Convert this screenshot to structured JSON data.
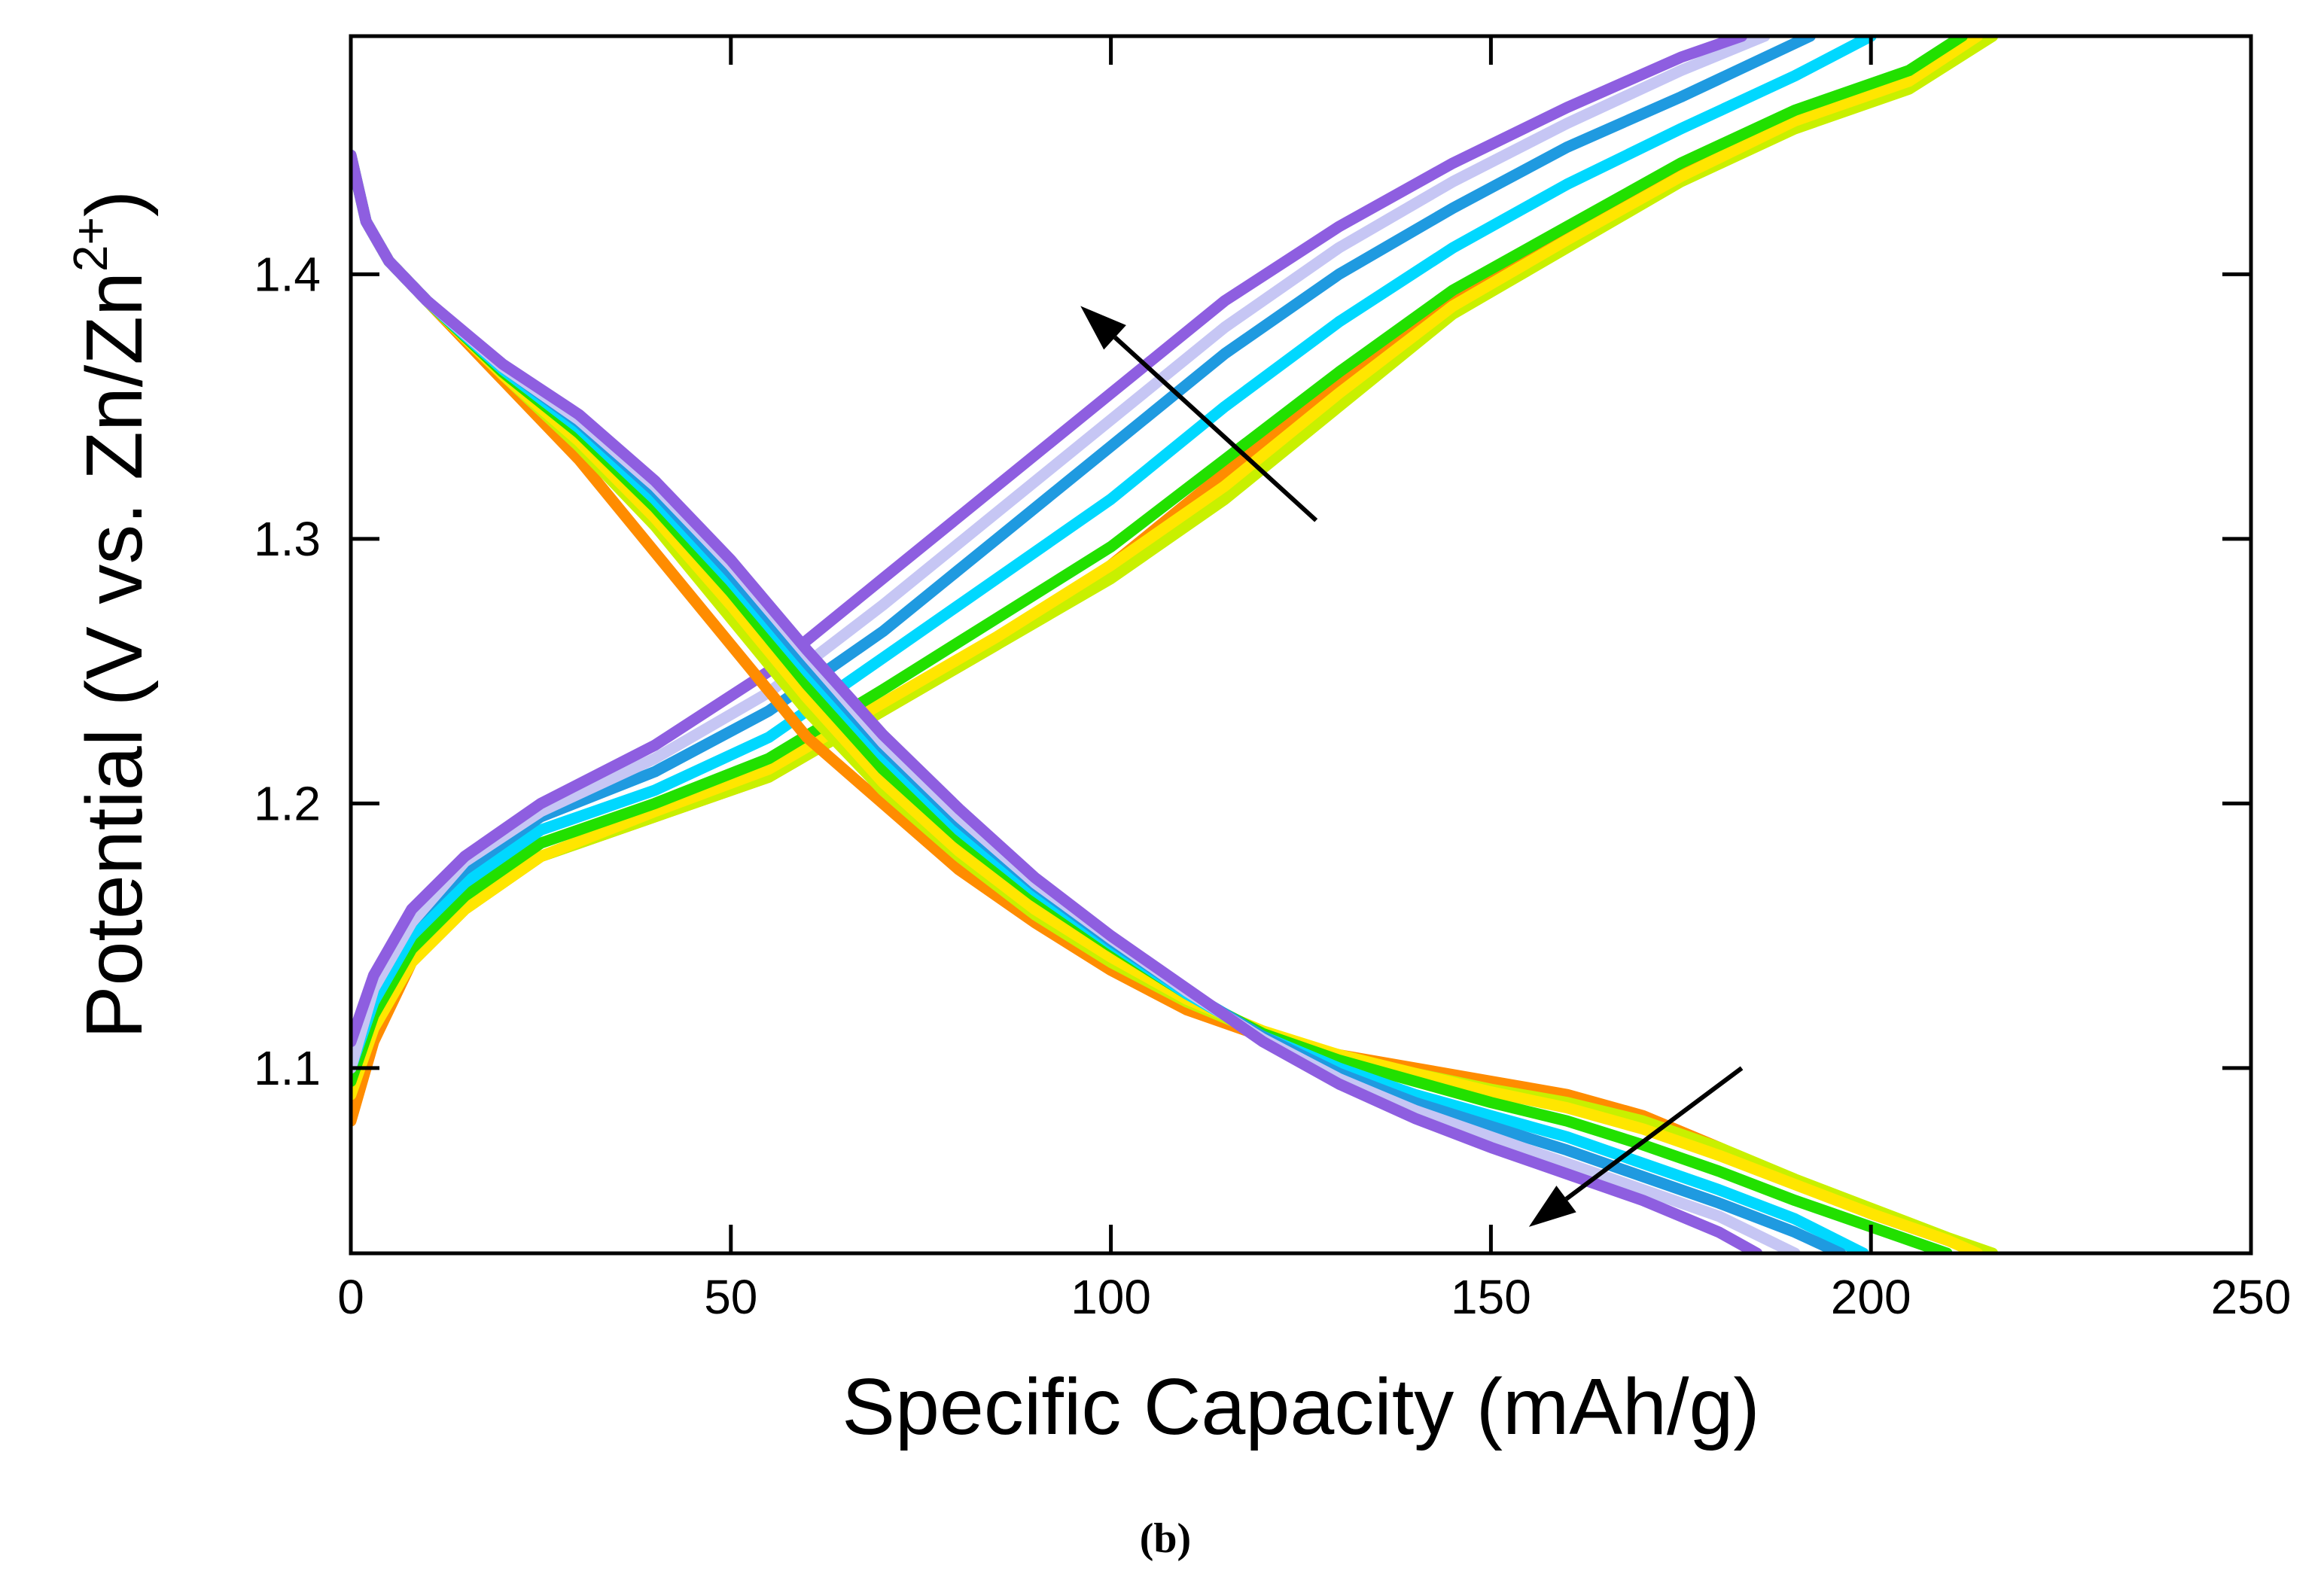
{
  "chart_data": {
    "type": "line",
    "title": "",
    "panel_label": "(b)",
    "xlabel": "Specific Capacity (mAh/g)",
    "ylabel": "Potential (V vs. Zn/Zn",
    "ylabel_superscript": "2+",
    "ylabel_suffix": ")",
    "xlim": [
      0,
      250
    ],
    "ylim": [
      1.03,
      1.49
    ],
    "x_ticks": [
      0,
      50,
      100,
      150,
      200,
      250
    ],
    "x_tick_labels": [
      "0",
      "50",
      "100",
      "150",
      "200",
      "250"
    ],
    "y_ticks": [
      1.1,
      1.2,
      1.3,
      1.4
    ],
    "y_tick_labels": [
      "1.1",
      "1.2",
      "1.3",
      "1.4"
    ],
    "grid": false,
    "legend": "none",
    "charge_series": [
      {
        "color": "#ff8c00",
        "x": [
          0,
          3,
          8,
          15,
          25,
          40,
          55,
          70,
          85,
          100,
          115,
          130,
          145,
          160,
          175,
          190,
          205,
          215
        ],
        "y": [
          1.08,
          1.11,
          1.14,
          1.16,
          1.18,
          1.195,
          1.21,
          1.235,
          1.26,
          1.29,
          1.325,
          1.36,
          1.39,
          1.415,
          1.44,
          1.46,
          1.475,
          1.49
        ]
      },
      {
        "color": "#c8f000",
        "x": [
          0,
          3,
          8,
          15,
          25,
          40,
          55,
          70,
          85,
          100,
          115,
          130,
          145,
          160,
          175,
          190,
          205,
          216
        ],
        "y": [
          1.09,
          1.115,
          1.14,
          1.16,
          1.18,
          1.195,
          1.21,
          1.235,
          1.26,
          1.285,
          1.315,
          1.35,
          1.385,
          1.41,
          1.435,
          1.455,
          1.47,
          1.49
        ]
      },
      {
        "color": "#ffe600",
        "x": [
          0,
          3,
          8,
          15,
          25,
          40,
          55,
          70,
          85,
          100,
          115,
          130,
          145,
          160,
          175,
          190,
          205,
          214
        ],
        "y": [
          1.09,
          1.115,
          1.14,
          1.16,
          1.18,
          1.197,
          1.213,
          1.238,
          1.263,
          1.29,
          1.32,
          1.355,
          1.388,
          1.413,
          1.437,
          1.458,
          1.473,
          1.49
        ]
      },
      {
        "color": "#22e000",
        "x": [
          0,
          3,
          8,
          15,
          25,
          40,
          55,
          70,
          85,
          100,
          115,
          130,
          145,
          160,
          175,
          190,
          205,
          212
        ],
        "y": [
          1.095,
          1.12,
          1.145,
          1.165,
          1.185,
          1.2,
          1.217,
          1.243,
          1.27,
          1.297,
          1.33,
          1.363,
          1.394,
          1.418,
          1.442,
          1.462,
          1.477,
          1.49
        ]
      },
      {
        "color": "#00d8ff",
        "x": [
          0,
          3,
          8,
          15,
          25,
          40,
          55,
          70,
          85,
          100,
          115,
          130,
          145,
          160,
          175,
          190,
          200
        ],
        "y": [
          1.1,
          1.125,
          1.15,
          1.17,
          1.19,
          1.205,
          1.225,
          1.255,
          1.285,
          1.315,
          1.35,
          1.382,
          1.41,
          1.434,
          1.455,
          1.475,
          1.49
        ]
      },
      {
        "color": "#1f9ae0",
        "x": [
          0,
          3,
          8,
          15,
          25,
          40,
          55,
          70,
          85,
          100,
          115,
          130,
          145,
          160,
          175,
          192
        ],
        "y": [
          1.1,
          1.13,
          1.155,
          1.175,
          1.195,
          1.212,
          1.235,
          1.265,
          1.3,
          1.335,
          1.37,
          1.4,
          1.425,
          1.448,
          1.467,
          1.49
        ]
      },
      {
        "color": "#c6c6f4",
        "x": [
          0,
          3,
          8,
          15,
          25,
          40,
          55,
          70,
          85,
          100,
          115,
          130,
          145,
          160,
          175,
          186
        ],
        "y": [
          1.1,
          1.13,
          1.155,
          1.178,
          1.197,
          1.217,
          1.242,
          1.275,
          1.31,
          1.345,
          1.38,
          1.41,
          1.435,
          1.457,
          1.477,
          1.49
        ]
      },
      {
        "color": "#8e5ee0",
        "x": [
          0,
          3,
          8,
          15,
          25,
          40,
          55,
          70,
          85,
          100,
          115,
          130,
          145,
          160,
          175,
          183
        ],
        "y": [
          1.11,
          1.135,
          1.16,
          1.18,
          1.2,
          1.222,
          1.25,
          1.285,
          1.32,
          1.355,
          1.39,
          1.418,
          1.442,
          1.463,
          1.482,
          1.49
        ]
      }
    ],
    "discharge_series": [
      {
        "color": "#ff8c00",
        "x": [
          0,
          2,
          5,
          10,
          20,
          30,
          40,
          50,
          60,
          70,
          80,
          90,
          100,
          110,
          120,
          130,
          140,
          150,
          160,
          170,
          180,
          190,
          200,
          210,
          215
        ],
        "y": [
          1.445,
          1.42,
          1.405,
          1.39,
          1.36,
          1.33,
          1.295,
          1.26,
          1.225,
          1.2,
          1.175,
          1.155,
          1.137,
          1.122,
          1.112,
          1.105,
          1.1,
          1.095,
          1.09,
          1.082,
          1.07,
          1.057,
          1.045,
          1.035,
          1.03
        ]
      },
      {
        "color": "#c8f000",
        "x": [
          0,
          2,
          5,
          10,
          20,
          30,
          40,
          50,
          60,
          70,
          80,
          90,
          100,
          110,
          120,
          130,
          140,
          150,
          160,
          170,
          180,
          190,
          200,
          210,
          216
        ],
        "y": [
          1.445,
          1.42,
          1.405,
          1.39,
          1.362,
          1.335,
          1.305,
          1.27,
          1.235,
          1.205,
          1.18,
          1.158,
          1.14,
          1.125,
          1.113,
          1.105,
          1.098,
          1.092,
          1.087,
          1.08,
          1.07,
          1.058,
          1.047,
          1.036,
          1.03
        ]
      },
      {
        "color": "#ffe600",
        "x": [
          0,
          2,
          5,
          10,
          20,
          30,
          40,
          50,
          60,
          70,
          80,
          90,
          100,
          110,
          120,
          130,
          140,
          150,
          160,
          170,
          180,
          190,
          200,
          210,
          214
        ],
        "y": [
          1.445,
          1.42,
          1.405,
          1.39,
          1.362,
          1.337,
          1.308,
          1.275,
          1.24,
          1.208,
          1.182,
          1.16,
          1.142,
          1.126,
          1.114,
          1.105,
          1.098,
          1.091,
          1.085,
          1.077,
          1.067,
          1.056,
          1.045,
          1.035,
          1.03
        ]
      },
      {
        "color": "#22e000",
        "x": [
          0,
          2,
          5,
          10,
          20,
          30,
          40,
          50,
          60,
          70,
          80,
          90,
          100,
          110,
          120,
          130,
          140,
          150,
          160,
          170,
          180,
          190,
          200,
          210
        ],
        "y": [
          1.445,
          1.42,
          1.405,
          1.39,
          1.363,
          1.34,
          1.312,
          1.28,
          1.245,
          1.213,
          1.187,
          1.165,
          1.146,
          1.128,
          1.113,
          1.103,
          1.095,
          1.087,
          1.08,
          1.071,
          1.061,
          1.05,
          1.04,
          1.03
        ]
      },
      {
        "color": "#00d8ff",
        "x": [
          0,
          2,
          5,
          10,
          20,
          30,
          40,
          50,
          60,
          70,
          80,
          90,
          100,
          110,
          120,
          130,
          140,
          150,
          160,
          170,
          180,
          190,
          199
        ],
        "y": [
          1.445,
          1.42,
          1.405,
          1.39,
          1.364,
          1.342,
          1.315,
          1.284,
          1.25,
          1.218,
          1.19,
          1.167,
          1.147,
          1.128,
          1.112,
          1.1,
          1.09,
          1.082,
          1.074,
          1.064,
          1.054,
          1.043,
          1.03
        ]
      },
      {
        "color": "#1f9ae0",
        "x": [
          0,
          2,
          5,
          10,
          20,
          30,
          40,
          50,
          60,
          70,
          80,
          90,
          100,
          110,
          120,
          130,
          140,
          150,
          160,
          170,
          180,
          190,
          196
        ],
        "y": [
          1.445,
          1.42,
          1.405,
          1.39,
          1.365,
          1.344,
          1.318,
          1.287,
          1.253,
          1.221,
          1.193,
          1.169,
          1.148,
          1.129,
          1.112,
          1.098,
          1.087,
          1.078,
          1.069,
          1.059,
          1.049,
          1.038,
          1.03
        ]
      },
      {
        "color": "#c6c6f4",
        "x": [
          0,
          2,
          5,
          10,
          20,
          30,
          40,
          50,
          60,
          70,
          80,
          90,
          100,
          110,
          120,
          130,
          140,
          150,
          160,
          170,
          180,
          190
        ],
        "y": [
          1.445,
          1.42,
          1.405,
          1.39,
          1.365,
          1.345,
          1.32,
          1.29,
          1.256,
          1.223,
          1.195,
          1.17,
          1.149,
          1.129,
          1.111,
          1.096,
          1.084,
          1.074,
          1.064,
          1.054,
          1.044,
          1.03
        ]
      },
      {
        "color": "#8e5ee0",
        "x": [
          0,
          2,
          5,
          10,
          20,
          30,
          40,
          50,
          60,
          70,
          80,
          90,
          100,
          110,
          120,
          130,
          140,
          150,
          160,
          170,
          180,
          185
        ],
        "y": [
          1.445,
          1.42,
          1.405,
          1.39,
          1.366,
          1.347,
          1.322,
          1.292,
          1.258,
          1.226,
          1.198,
          1.172,
          1.15,
          1.13,
          1.11,
          1.094,
          1.081,
          1.07,
          1.06,
          1.05,
          1.038,
          1.03
        ]
      }
    ],
    "annotations": [
      {
        "kind": "arrow",
        "meaning": "trend in charge curves with cycling",
        "from": [
          127,
          1.307
        ],
        "to": [
          96,
          1.388
        ]
      },
      {
        "kind": "arrow",
        "meaning": "trend in discharge curves with cycling",
        "from": [
          183,
          1.1
        ],
        "to": [
          155,
          1.04
        ]
      }
    ]
  }
}
